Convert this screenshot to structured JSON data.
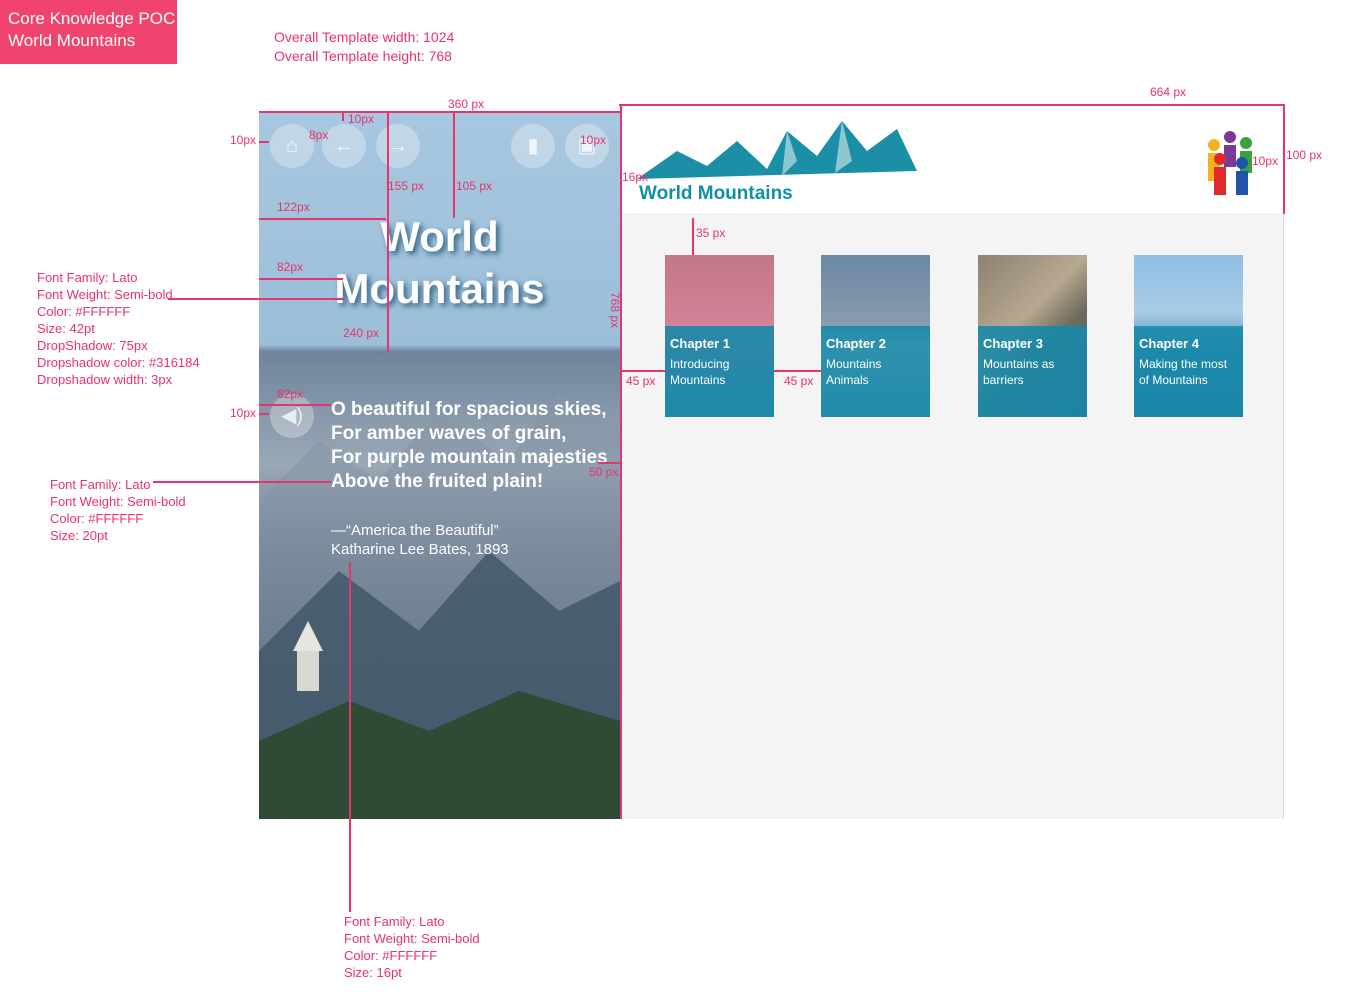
{
  "badge": {
    "line1": "Core Knowledge POC",
    "line2": "World Mountains"
  },
  "template_info": {
    "width": "Overall  Template width: 1024",
    "height": "Overall Template height: 768"
  },
  "measures": {
    "m360": "360 px",
    "m664": "664 px",
    "m10a": "10px",
    "m10b": "10px",
    "m8": "8px",
    "m10c": "10px",
    "m10d": "10px",
    "m155": "155 px",
    "m105": "105 px",
    "m122": "122px",
    "m82a": "82px",
    "m240": "240 px",
    "m82b": "82px",
    "m10e": "10px",
    "m16": "16px",
    "m100": "100 px",
    "m35": "35 px",
    "m45a": "45 px",
    "m45b": "45 px",
    "m50": "50 px",
    "m768": "768 px"
  },
  "specs": {
    "title_spec": [
      "Font Family: Lato",
      "Font Weight: Semi-bold",
      "Color: #FFFFFF",
      "Size: 42pt",
      "DropShadow: 75px",
      "Dropshadow color: #316184",
      "Dropshadow width: 3px"
    ],
    "poem_spec": [
      "Font Family: Lato",
      "Font Weight: Semi-bold",
      "Color: #FFFFFF",
      "Size: 20pt"
    ],
    "attr_spec": [
      "Font Family: Lato",
      "Font Weight: Semi-bold",
      "Color: #FFFFFF",
      "Size: 16pt"
    ]
  },
  "left_panel": {
    "title_line1": "World",
    "title_line2": "Mountains",
    "poem": [
      "O beautiful for spacious skies,",
      "For amber waves of grain,",
      "For purple mountain majesties",
      "Above the fruited plain!"
    ],
    "attribution": [
      "—“America the Beautiful”",
      "Katharine Lee Bates, 1893"
    ],
    "icons": [
      "home-icon",
      "back-arrow-icon",
      "forward-arrow-icon",
      "book-icon",
      "image-icon",
      "speaker-icon"
    ]
  },
  "right_panel": {
    "brand": "World Mountains",
    "chapters": [
      {
        "title": "Chapter 1",
        "subtitle": "Introducing Mountains"
      },
      {
        "title": "Chapter 2",
        "subtitle": "Mountains Animals"
      },
      {
        "title": "Chapter 3",
        "subtitle": "Mountains as barriers"
      },
      {
        "title": "Chapter 4",
        "subtitle": "Making the most of Mountains"
      }
    ]
  },
  "colors": {
    "accent": "#e8336b",
    "brand": "#128fa8",
    "card_overlay": "#1689aa",
    "shadow": "#316184"
  }
}
